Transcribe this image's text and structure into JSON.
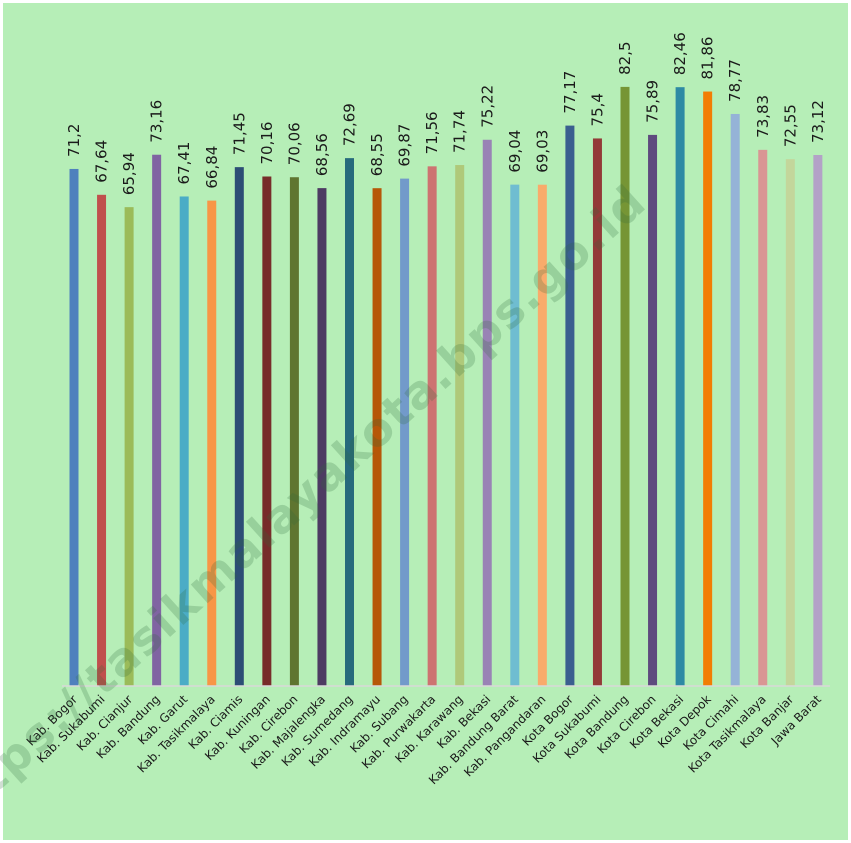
{
  "watermark": "https://tasikmalayakota.bps.go.id",
  "colors": {
    "background": "#b6eeb7",
    "border": "#ffffff",
    "axis": "#d9d9d9"
  },
  "chart_data": {
    "type": "bar",
    "title": "",
    "xlabel": "",
    "ylabel": "",
    "ylim": [
      0,
      84
    ],
    "grid": false,
    "legend": "none",
    "categories": [
      "Kab. Bogor",
      "Kab. Sukabumi",
      "Kab. Cianjur",
      "Kab. Bandung",
      "Kab. Garut",
      "Kab. Tasikmalaya",
      "Kab. Ciamis",
      "Kab. Kuningan",
      "Kab. Cirebon",
      "Kab. Majalengka",
      "Kab. Sumedang",
      "Kab. Indramayu",
      "Kab. Subang",
      "Kab. Purwakarta",
      "Kab. Karawang",
      "Kab. Bekasi",
      "Kab. Bandung Barat",
      "Kab. Pangandaran",
      "Kota Bogor",
      "Kota Sukabumi",
      "Kota Bandung",
      "Kota Cirebon",
      "Kota Bekasi",
      "Kota Depok",
      "Kota Cimahi",
      "Kota Tasikmalaya",
      "Kota Banjar",
      "Jawa Barat"
    ],
    "values": [
      71.2,
      67.64,
      65.94,
      73.16,
      67.41,
      66.84,
      71.45,
      70.16,
      70.06,
      68.56,
      72.69,
      68.55,
      69.87,
      71.56,
      71.74,
      75.22,
      69.04,
      69.03,
      77.17,
      75.4,
      82.5,
      75.89,
      82.46,
      81.86,
      78.77,
      73.83,
      72.55,
      73.12
    ],
    "value_labels": [
      "71,2",
      "67,64",
      "65,94",
      "73,16",
      "67,41",
      "66,84",
      "71,45",
      "70,16",
      "70,06",
      "68,56",
      "72,69",
      "68,55",
      "69,87",
      "71,56",
      "71,74",
      "75,22",
      "69,04",
      "69,03",
      "77,17",
      "75,4",
      "82,5",
      "75,89",
      "82,46",
      "81,86",
      "78,77",
      "73,83",
      "72,55",
      "73,12"
    ],
    "bar_colors": [
      "#4f81bd",
      "#c0504d",
      "#9bbb59",
      "#8064a2",
      "#4bacc6",
      "#f79646",
      "#2c4d75",
      "#772c2a",
      "#5f7530",
      "#4d3b62",
      "#276a7c",
      "#b65708",
      "#729aca",
      "#cd7371",
      "#afc97a",
      "#9983b5",
      "#6fbdd1",
      "#f9ab6b",
      "#3a5f8f",
      "#933a38",
      "#769535",
      "#5e4a7e",
      "#2e8aa4",
      "#f27d04",
      "#95b3d7",
      "#d99694",
      "#c3d69b",
      "#b3a2c7"
    ]
  }
}
